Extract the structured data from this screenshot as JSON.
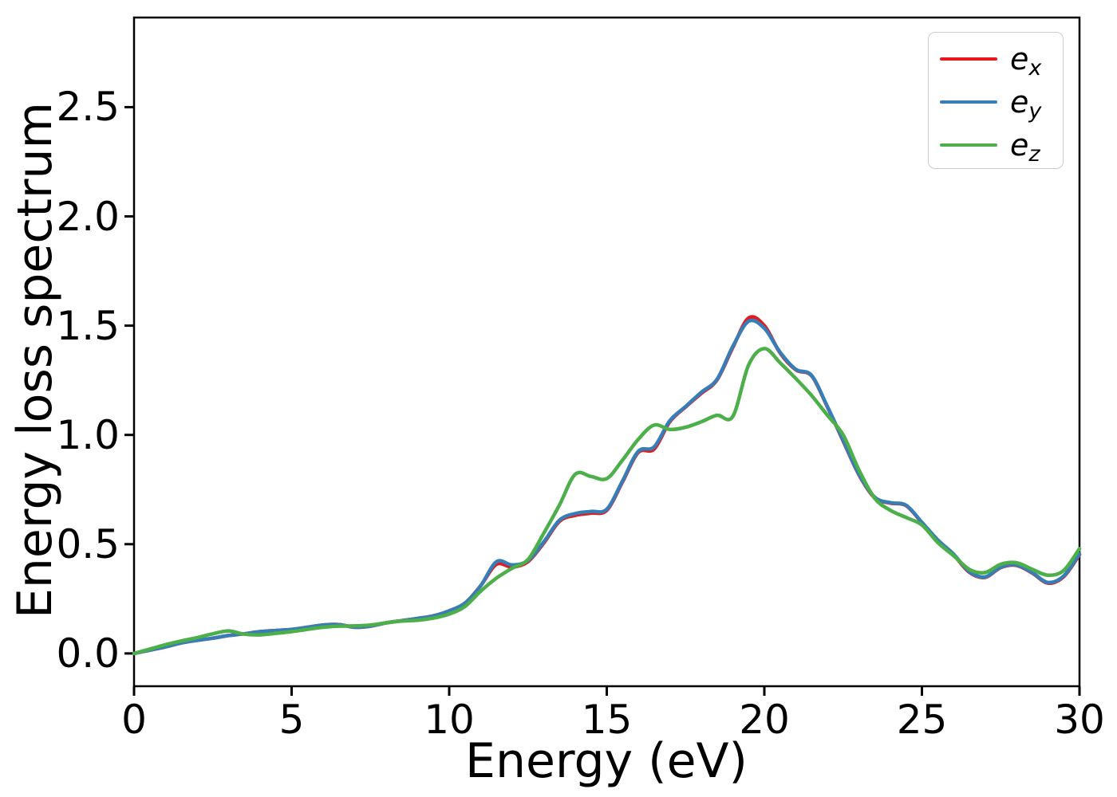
{
  "figure": {
    "background": "#ffffff",
    "axis_color": "#000000"
  },
  "chart_data": {
    "type": "line",
    "title": "",
    "xlabel": "Energy (eV)",
    "ylabel": "Energy loss spectrum",
    "xlim": [
      0,
      30
    ],
    "ylim": [
      -0.15,
      2.91
    ],
    "xticks": [
      0,
      5,
      10,
      15,
      20,
      25,
      30
    ],
    "xtick_labels": [
      "0",
      "5",
      "10",
      "15",
      "20",
      "25",
      "30"
    ],
    "yticks": [
      0.0,
      0.5,
      1.0,
      1.5,
      2.0,
      2.5
    ],
    "ytick_labels": [
      "0.0",
      "0.5",
      "1.0",
      "1.5",
      "2.0",
      "2.5"
    ],
    "grid": false,
    "legend_position": "upper right",
    "x_values": [
      0,
      0.5,
      1,
      1.5,
      2,
      2.5,
      3,
      3.5,
      4,
      4.5,
      5,
      5.5,
      6,
      6.5,
      7,
      7.5,
      8,
      8.5,
      9,
      9.5,
      10,
      10.5,
      11,
      11.5,
      12,
      12.5,
      13,
      13.5,
      14,
      14.5,
      15,
      15.5,
      16,
      16.5,
      17,
      17.5,
      18,
      18.5,
      19,
      19.5,
      20,
      20.5,
      21,
      21.5,
      22,
      22.5,
      23,
      23.5,
      24,
      24.5,
      25,
      25.5,
      26,
      26.5,
      27,
      27.5,
      28,
      28.5,
      29,
      29.5,
      30
    ],
    "series": [
      {
        "name": "e_x",
        "legend_main": "e",
        "legend_sub": "x",
        "color": "#e41a1c",
        "values": [
          0.0,
          0.015,
          0.03,
          0.048,
          0.06,
          0.07,
          0.082,
          0.09,
          0.1,
          0.105,
          0.11,
          0.12,
          0.13,
          0.132,
          0.12,
          0.125,
          0.14,
          0.15,
          0.16,
          0.172,
          0.195,
          0.23,
          0.31,
          0.408,
          0.395,
          0.42,
          0.505,
          0.605,
          0.632,
          0.642,
          0.655,
          0.785,
          0.92,
          0.935,
          1.06,
          1.128,
          1.19,
          1.252,
          1.4,
          1.535,
          1.5,
          1.375,
          1.298,
          1.27,
          1.128,
          0.972,
          0.818,
          0.712,
          0.688,
          0.676,
          0.598,
          0.518,
          0.452,
          0.372,
          0.348,
          0.393,
          0.403,
          0.368,
          0.322,
          0.352,
          0.452
        ]
      },
      {
        "name": "e_y",
        "legend_main": "e",
        "legend_sub": "y",
        "color": "#377eb8",
        "values": [
          0.0,
          0.015,
          0.03,
          0.048,
          0.06,
          0.07,
          0.082,
          0.09,
          0.1,
          0.105,
          0.11,
          0.12,
          0.13,
          0.132,
          0.12,
          0.125,
          0.14,
          0.15,
          0.16,
          0.172,
          0.195,
          0.23,
          0.31,
          0.42,
          0.405,
          0.425,
          0.51,
          0.61,
          0.64,
          0.65,
          0.66,
          0.79,
          0.925,
          0.945,
          1.065,
          1.13,
          1.195,
          1.255,
          1.405,
          1.52,
          1.488,
          1.378,
          1.3,
          1.272,
          1.13,
          0.975,
          0.82,
          0.715,
          0.69,
          0.678,
          0.6,
          0.52,
          0.455,
          0.375,
          0.35,
          0.395,
          0.405,
          0.37,
          0.325,
          0.355,
          0.455
        ]
      },
      {
        "name": "e_z",
        "legend_main": "e",
        "legend_sub": "z",
        "color": "#4daf4a",
        "values": [
          0.0,
          0.02,
          0.04,
          0.057,
          0.072,
          0.09,
          0.103,
          0.088,
          0.085,
          0.092,
          0.1,
          0.11,
          0.12,
          0.125,
          0.126,
          0.13,
          0.14,
          0.148,
          0.152,
          0.162,
          0.18,
          0.215,
          0.285,
          0.345,
          0.39,
          0.43,
          0.55,
          0.68,
          0.82,
          0.81,
          0.8,
          0.885,
          0.98,
          1.045,
          1.025,
          1.035,
          1.06,
          1.09,
          1.085,
          1.32,
          1.395,
          1.33,
          1.258,
          1.18,
          1.09,
          1.0,
          0.84,
          0.71,
          0.655,
          0.622,
          0.588,
          0.508,
          0.448,
          0.385,
          0.37,
          0.408,
          0.415,
          0.385,
          0.358,
          0.38,
          0.48
        ]
      }
    ]
  }
}
